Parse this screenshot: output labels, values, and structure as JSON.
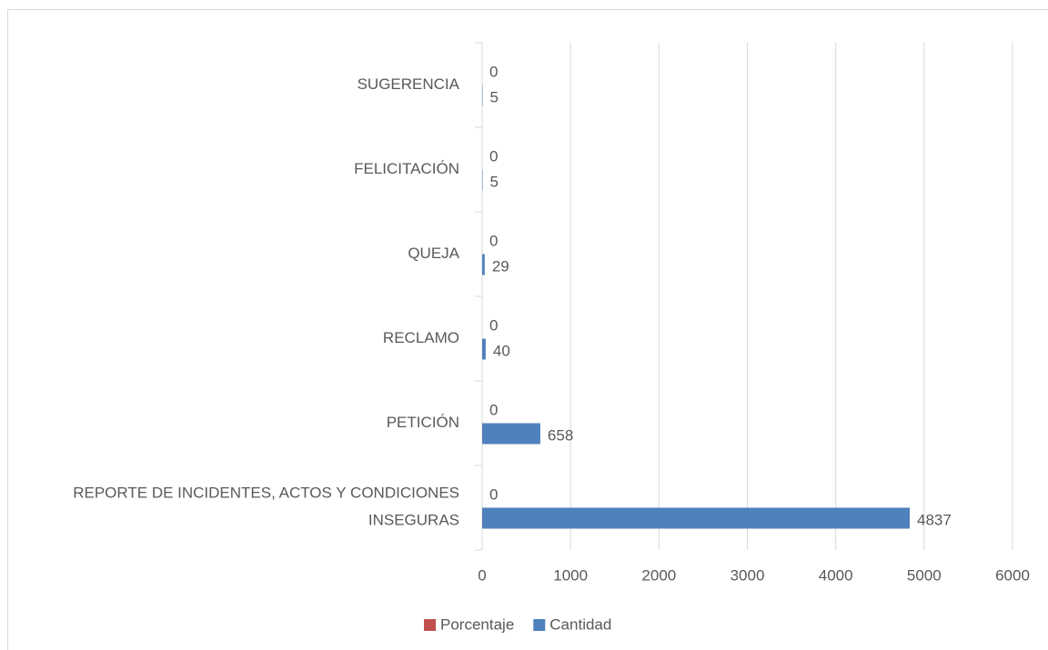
{
  "chart_data": {
    "type": "barh",
    "categories": [
      "SUGERENCIA",
      "FELICITACIÓN",
      "QUEJA",
      "RECLAMO",
      "PETICIÓN",
      "REPORTE DE INCIDENTES, ACTOS Y CONDICIONES INSEGURAS"
    ],
    "series": [
      {
        "name": "Porcentaje",
        "color": "#c0504d",
        "values": [
          0,
          0,
          0,
          0,
          0,
          0
        ]
      },
      {
        "name": "Cantidad",
        "color": "#4f81bd",
        "values": [
          5,
          5,
          29,
          40,
          658,
          4837
        ]
      }
    ],
    "xlim": [
      0,
      6000
    ],
    "xticks": [
      0,
      1000,
      2000,
      3000,
      4000,
      5000,
      6000
    ],
    "grid": true,
    "legend": "bottom"
  }
}
